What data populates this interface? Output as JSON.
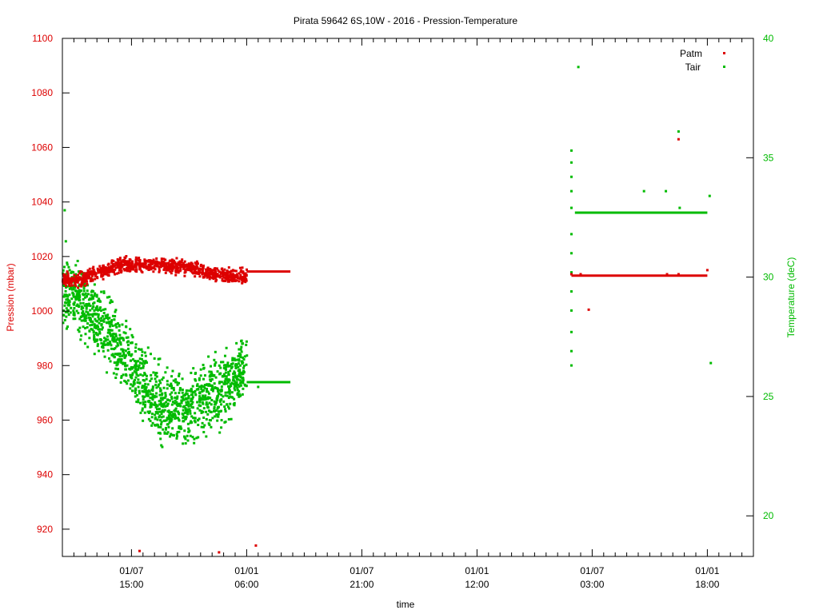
{
  "chart_data": {
    "type": "scatter",
    "title": "Pirata 59642 6S,10W - 2016 - Pression-Temperature",
    "xlabel": "time",
    "ylabel_left": "Pression (mbar)",
    "ylabel_right": "Temperature (deC)",
    "left_axis_color": "#dd0000",
    "right_axis_color": "#00bb00",
    "grid": false,
    "legend_position": "top-right",
    "xlim": [
      0,
      6.0
    ],
    "ylim_left": [
      910,
      1100
    ],
    "ylim_right": [
      18.3,
      40
    ],
    "x_ticks": [
      {
        "x": 0.6,
        "date": "01/07",
        "time": "15:00"
      },
      {
        "x": 1.6,
        "date": "01/01",
        "time": "06:00"
      },
      {
        "x": 2.6,
        "date": "01/07",
        "time": "21:00"
      },
      {
        "x": 3.6,
        "date": "01/01",
        "time": "12:00"
      },
      {
        "x": 4.6,
        "date": "01/07",
        "time": "03:00"
      },
      {
        "x": 5.6,
        "date": "01/01",
        "time": "18:00"
      }
    ],
    "y_ticks_left": [
      920,
      940,
      960,
      980,
      1000,
      1020,
      1040,
      1060,
      1080,
      1100
    ],
    "y_ticks_right": [
      20,
      25,
      30,
      35,
      40
    ],
    "series": [
      {
        "name": "Patm",
        "axis": "left",
        "color": "#dd0000",
        "noisy_profile": {
          "x": [
            0.0,
            0.1,
            0.3,
            0.5,
            0.7,
            0.9,
            1.1,
            1.3,
            1.45,
            1.6
          ],
          "y": [
            1012,
            1011,
            1014,
            1017,
            1017,
            1017,
            1016,
            1014,
            1013,
            1013
          ],
          "noise": 2.5
        },
        "flat_segments": [
          {
            "x": [
              1.6,
              1.98
            ],
            "y": 1014.5
          },
          {
            "x": [
              4.42,
              5.6
            ],
            "y": 1013
          }
        ],
        "points": [
          {
            "x": 0.67,
            "y": 912
          },
          {
            "x": 1.36,
            "y": 911.5
          },
          {
            "x": 1.68,
            "y": 914
          },
          {
            "x": 4.42,
            "y": 1013.5
          },
          {
            "x": 4.5,
            "y": 1013.5
          },
          {
            "x": 4.57,
            "y": 1000.5
          },
          {
            "x": 5.25,
            "y": 1013.5
          },
          {
            "x": 5.35,
            "y": 1013.5
          },
          {
            "x": 5.35,
            "y": 1063
          },
          {
            "x": 5.6,
            "y": 1015
          }
        ]
      },
      {
        "name": "Tair",
        "axis": "right",
        "color": "#00bb00",
        "noisy_profile": {
          "x": [
            0.0,
            0.1,
            0.2,
            0.3,
            0.4,
            0.5,
            0.6,
            0.7,
            0.8,
            0.9,
            1.0,
            1.1,
            1.2,
            1.3,
            1.4,
            1.5,
            1.6
          ],
          "y": [
            29.3,
            29.3,
            28.7,
            28.2,
            27.6,
            27.0,
            26.2,
            25.5,
            24.9,
            24.6,
            24.4,
            24.5,
            24.9,
            25.2,
            25.4,
            25.8,
            26.2
          ],
          "noise": 1.4
        },
        "flat_segments": [
          {
            "x": [
              1.6,
              1.98
            ],
            "y": 25.6
          },
          {
            "x": [
              4.45,
              5.6
            ],
            "y": 32.7
          }
        ],
        "points": [
          {
            "x": 0.02,
            "y": 32.8
          },
          {
            "x": 0.03,
            "y": 31.5
          },
          {
            "x": 0.04,
            "y": 30.6
          },
          {
            "x": 1.6,
            "y": 27.3
          },
          {
            "x": 1.7,
            "y": 25.4
          },
          {
            "x": 4.48,
            "y": 38.8
          },
          {
            "x": 4.42,
            "y": 35.3
          },
          {
            "x": 4.42,
            "y": 34.8
          },
          {
            "x": 4.42,
            "y": 34.2
          },
          {
            "x": 4.42,
            "y": 33.6
          },
          {
            "x": 4.42,
            "y": 32.9
          },
          {
            "x": 4.42,
            "y": 31.8
          },
          {
            "x": 4.42,
            "y": 31.0
          },
          {
            "x": 4.42,
            "y": 30.2
          },
          {
            "x": 4.42,
            "y": 29.4
          },
          {
            "x": 4.42,
            "y": 28.6
          },
          {
            "x": 4.42,
            "y": 27.7
          },
          {
            "x": 4.42,
            "y": 26.9
          },
          {
            "x": 4.42,
            "y": 26.3
          },
          {
            "x": 5.05,
            "y": 33.6
          },
          {
            "x": 5.24,
            "y": 33.6
          },
          {
            "x": 5.35,
            "y": 36.1
          },
          {
            "x": 5.36,
            "y": 32.9
          },
          {
            "x": 5.62,
            "y": 33.4
          },
          {
            "x": 5.63,
            "y": 26.4
          }
        ]
      }
    ]
  }
}
